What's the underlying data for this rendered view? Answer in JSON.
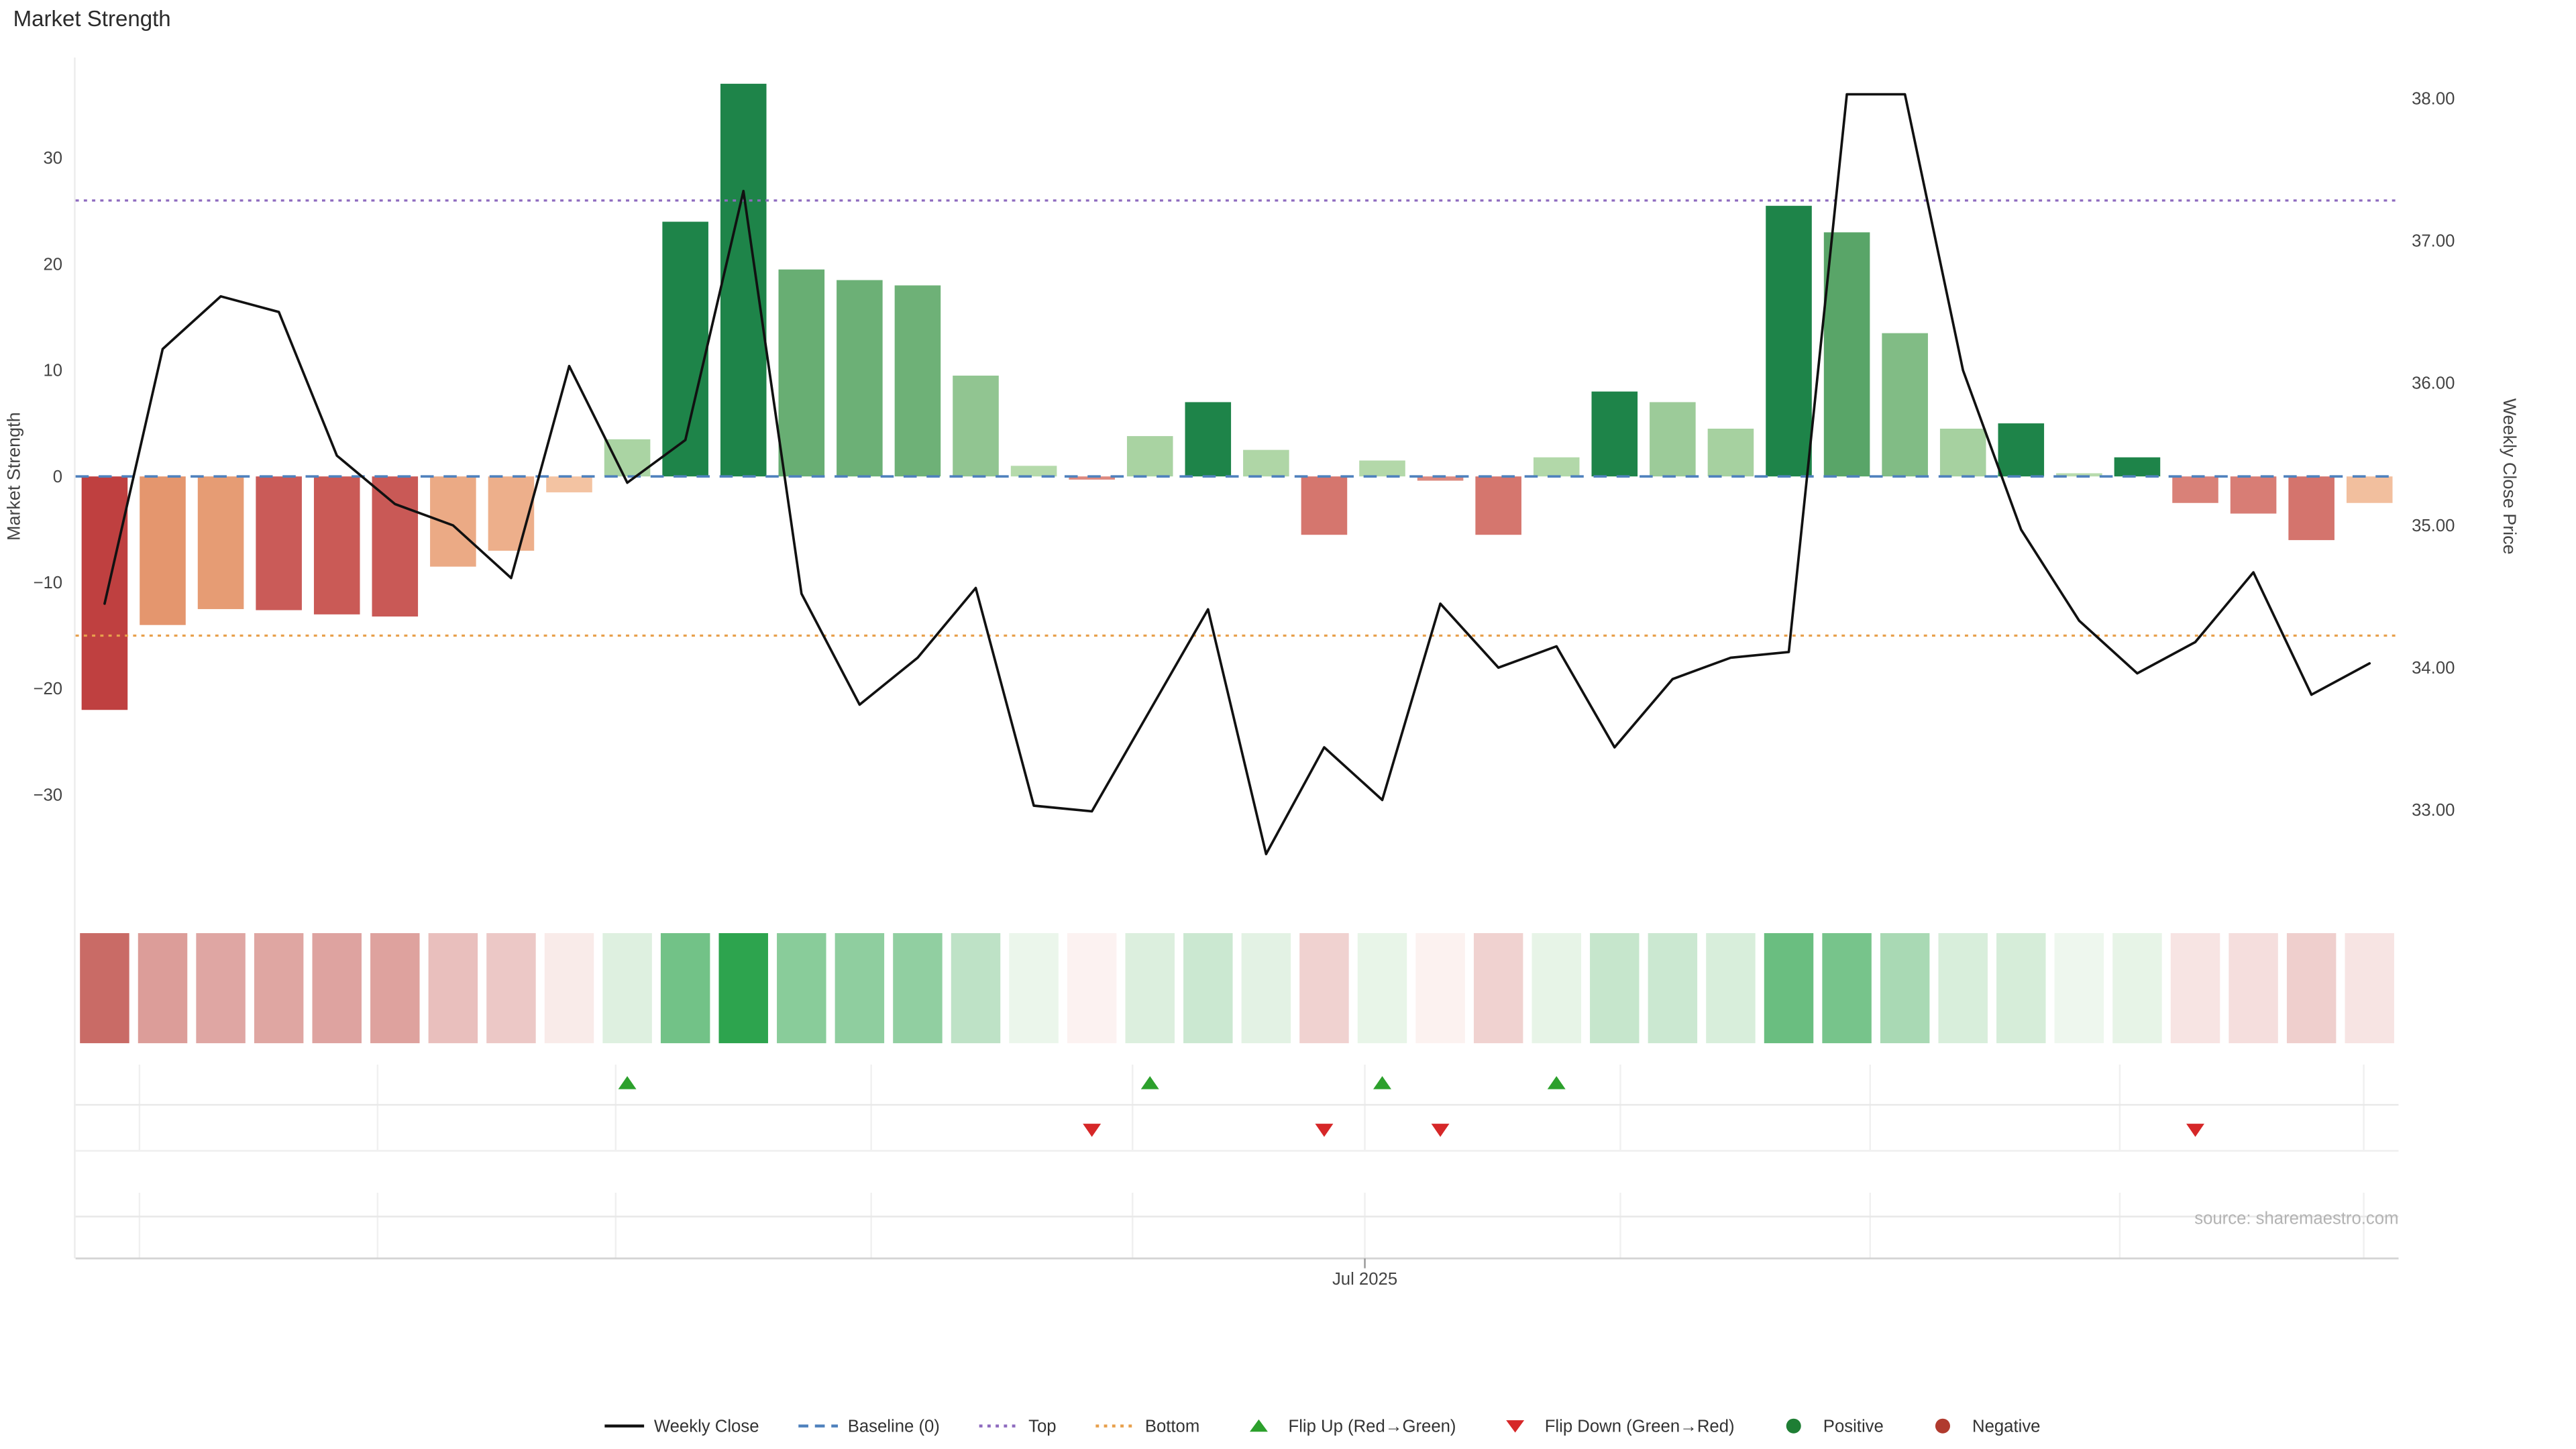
{
  "title": "Market Strength",
  "source": "source: sharemaestro.com",
  "axes": {
    "left_label": "Market Strength",
    "right_label": "Weekly Close Price",
    "left_ticks": [
      "30",
      "20",
      "10",
      "0",
      "−10",
      "−20",
      "−30"
    ],
    "left_tick_values": [
      30,
      20,
      10,
      0,
      -10,
      -20,
      -30
    ],
    "right_ticks": [
      "38.00",
      "37.00",
      "36.00",
      "35.00",
      "34.00",
      "33.00"
    ],
    "right_tick_values": [
      38,
      37,
      36,
      35,
      34,
      33
    ],
    "x_label": "Jul 2025"
  },
  "chart_data": {
    "type": "bar+line+heatmap",
    "n_weeks": 40,
    "series": [
      {
        "name": "Market Strength",
        "type": "bar",
        "axis": "left",
        "values": [
          -22,
          -14,
          -12.5,
          -12.6,
          -13,
          -13.2,
          -8.5,
          -7,
          -1.5,
          3.5,
          24,
          37,
          19.5,
          18.5,
          18,
          9.5,
          1,
          -0.3,
          3.8,
          7,
          2.5,
          -5.5,
          1.5,
          -0.4,
          -5.5,
          1.8,
          8,
          7,
          4.5,
          25.5,
          23,
          13.5,
          4.5,
          5,
          0.3,
          1.8,
          -2.5,
          -3.5,
          -6,
          -2.5
        ]
      },
      {
        "name": "Weekly Close",
        "type": "line",
        "axis": "right",
        "values": [
          34.45,
          36.24,
          36.61,
          36.5,
          35.49,
          35.15,
          35.0,
          34.63,
          36.12,
          35.3,
          35.6,
          37.35,
          34.52,
          33.74,
          34.07,
          34.56,
          33.03,
          32.99,
          33.7,
          34.41,
          32.69,
          33.44,
          33.07,
          34.45,
          34.0,
          34.15,
          33.44,
          33.92,
          34.07,
          34.11,
          38.03,
          38.03,
          36.09,
          34.97,
          34.33,
          33.96,
          34.18,
          34.67,
          33.81,
          34.03
        ]
      }
    ],
    "reference_lines": {
      "baseline": 0,
      "top": 26,
      "bottom": -15
    },
    "left_ylim": [
      -39.5,
      39.5
    ],
    "right_ylim": [
      32.35,
      38.3
    ],
    "flip_up_weeks": [
      10,
      19,
      23,
      26
    ],
    "flip_down_weeks": [
      18,
      22,
      24,
      37
    ],
    "month_gridline_weeks": [
      1.1,
      5.2,
      9.3,
      13.7,
      18.2,
      22.2,
      26.6,
      30.9,
      35.2,
      39.4
    ],
    "x_label_week": 22.2,
    "legend_position": "bottom-center",
    "grid": "off"
  },
  "colors": {
    "line": "#111111",
    "baseline": "#4f81bd",
    "top": "#8e6bbf",
    "bottom": "#e8a04c",
    "flip_up": "#2ca02c",
    "flip_down": "#d62728",
    "positive_dot": "#1e7e34",
    "negative_dot": "#b03a2e",
    "bar_pos_dark": "#1e8449",
    "bar_pos_light_lo": "#b9dcae",
    "bar_pos_light_hi": "#55a365",
    "bar_neg_fall_lo": "#dd8a80",
    "bar_neg_fall_hi": "#bf4040",
    "bar_neg_rise_lo": "#f5c8a8",
    "bar_neg_rise_hi": "#dd8155",
    "heat_pos": "#2da44e",
    "heat_pos_bg": "#f0f8ef",
    "heat_neg": "#c96b66",
    "heat_neg_bg": "#fdf4f3",
    "axis_text": "#444444",
    "source_text": "#b3b3b3"
  },
  "legend": {
    "items": [
      {
        "label": "Weekly Close",
        "swatch": "line",
        "color": "#111111"
      },
      {
        "label": "Baseline (0)",
        "swatch": "dash",
        "color": "#4f81bd"
      },
      {
        "label": "Top",
        "swatch": "dots",
        "color": "#8e6bbf"
      },
      {
        "label": "Bottom",
        "swatch": "dots",
        "color": "#e8a04c"
      },
      {
        "label": "Flip Up (Red→Green)",
        "swatch": "triangle-up",
        "color": "#2ca02c"
      },
      {
        "label": "Flip Down (Green→Red)",
        "swatch": "triangle-down",
        "color": "#d62728"
      },
      {
        "label": "Positive",
        "swatch": "circle",
        "color": "#1e7e34"
      },
      {
        "label": "Negative",
        "swatch": "circle",
        "color": "#b03a2e"
      }
    ]
  }
}
